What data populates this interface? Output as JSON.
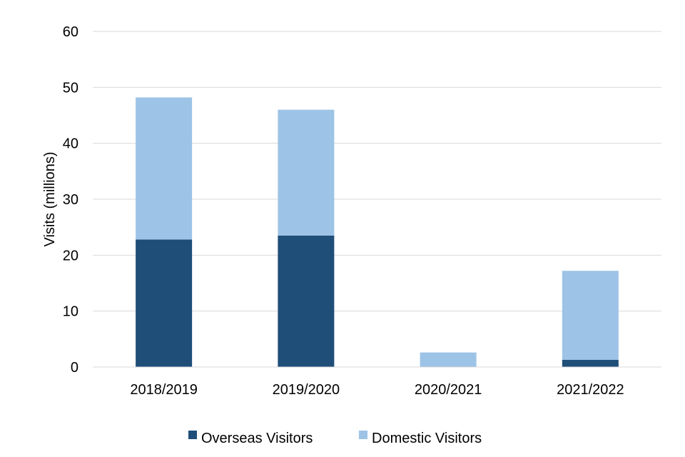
{
  "chart_data": {
    "type": "bar",
    "stacked": true,
    "categories": [
      "2018/2019",
      "2019/2020",
      "2020/2021",
      "2021/2022"
    ],
    "series": [
      {
        "name": "Overseas Visitors",
        "values": [
          22.8,
          23.5,
          0,
          1.3
        ],
        "color": "#1f4e79"
      },
      {
        "name": "Domestic Visitors",
        "values": [
          25.4,
          22.5,
          2.6,
          15.9
        ],
        "color": "#9dc3e6"
      }
    ],
    "title": "",
    "xlabel": "",
    "ylabel": "Visits (millions)",
    "ylim": [
      0,
      60
    ],
    "yticks": [
      0,
      10,
      20,
      30,
      40,
      50,
      60
    ],
    "grid": true,
    "legend_position": "bottom"
  }
}
